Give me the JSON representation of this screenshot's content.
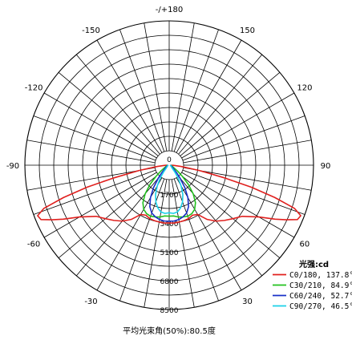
{
  "chart_data": {
    "type": "polar-line",
    "center_label": "0",
    "caption": "平均光束角(50%):80.5度",
    "angle_labels": [
      {
        "angle": 180,
        "text": "-/+180"
      },
      {
        "angle": -150,
        "text": "-150"
      },
      {
        "angle": 150,
        "text": "150"
      },
      {
        "angle": -120,
        "text": "-120"
      },
      {
        "angle": 120,
        "text": "120"
      },
      {
        "angle": -90,
        "text": "-90"
      },
      {
        "angle": 90,
        "text": "90"
      },
      {
        "angle": -60,
        "text": "-60"
      },
      {
        "angle": 60,
        "text": "60"
      },
      {
        "angle": -30,
        "text": "-30"
      },
      {
        "angle": 30,
        "text": "30"
      }
    ],
    "radial_labels": [
      "1700",
      "3400",
      "5100",
      "6800",
      "8500"
    ],
    "rmax": 8500,
    "legend_title": "光强:cd",
    "series": [
      {
        "name": "C0/180, 137.8°",
        "color": "#e0201e",
        "points": [
          [
            0,
            3400
          ],
          [
            5,
            3420
          ],
          [
            10,
            3400
          ],
          [
            15,
            3380
          ],
          [
            20,
            3350
          ],
          [
            25,
            3250
          ],
          [
            30,
            3350
          ],
          [
            35,
            3900
          ],
          [
            40,
            4300
          ],
          [
            45,
            4600
          ],
          [
            50,
            4900
          ],
          [
            55,
            5250
          ],
          [
            60,
            6100
          ],
          [
            63,
            7000
          ],
          [
            65,
            7600
          ],
          [
            67,
            8200
          ],
          [
            69,
            8300
          ],
          [
            71,
            7800
          ],
          [
            73,
            6500
          ],
          [
            75,
            5000
          ],
          [
            77,
            3400
          ],
          [
            80,
            1800
          ],
          [
            84,
            700
          ],
          [
            88,
            250
          ],
          [
            90,
            120
          ]
        ]
      },
      {
        "name": "C30/210, 84.9°",
        "color": "#22c21e",
        "points": [
          [
            0,
            3000
          ],
          [
            5,
            3000
          ],
          [
            10,
            3100
          ],
          [
            15,
            3150
          ],
          [
            20,
            3200
          ],
          [
            25,
            3150
          ],
          [
            30,
            3000
          ],
          [
            35,
            2700
          ],
          [
            40,
            2200
          ],
          [
            45,
            1600
          ],
          [
            50,
            1000
          ],
          [
            55,
            600
          ],
          [
            60,
            350
          ],
          [
            70,
            200
          ],
          [
            80,
            130
          ],
          [
            90,
            80
          ]
        ]
      },
      {
        "name": "C60/240, 52.7°",
        "color": "#1830c8",
        "points": [
          [
            0,
            3300
          ],
          [
            5,
            3300
          ],
          [
            10,
            3250
          ],
          [
            15,
            3150
          ],
          [
            20,
            3000
          ],
          [
            25,
            2700
          ],
          [
            30,
            2200
          ],
          [
            35,
            1600
          ],
          [
            40,
            1000
          ],
          [
            45,
            600
          ],
          [
            50,
            350
          ],
          [
            60,
            200
          ],
          [
            70,
            130
          ],
          [
            80,
            80
          ],
          [
            90,
            50
          ]
        ]
      },
      {
        "name": "C90/270, 46.5°",
        "color": "#1ad0e8",
        "points": [
          [
            0,
            2800
          ],
          [
            5,
            2850
          ],
          [
            10,
            2800
          ],
          [
            15,
            2600
          ],
          [
            20,
            2300
          ],
          [
            25,
            1900
          ],
          [
            30,
            1400
          ],
          [
            35,
            900
          ],
          [
            40,
            500
          ],
          [
            45,
            250
          ],
          [
            55,
            150
          ],
          [
            70,
            100
          ],
          [
            90,
            60
          ]
        ]
      }
    ]
  }
}
